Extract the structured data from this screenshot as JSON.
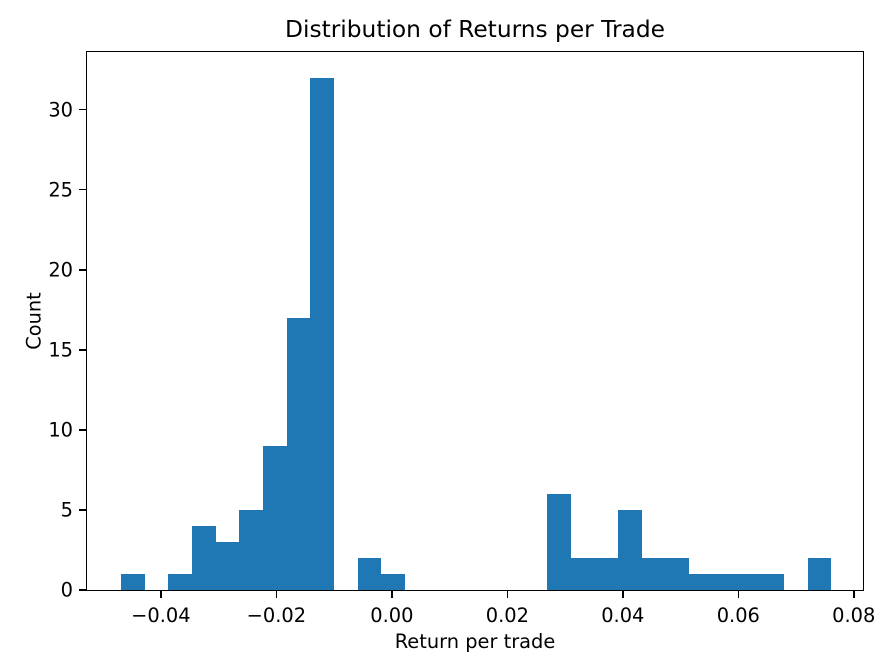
{
  "figure": {
    "background_color": "#ffffff",
    "text_color": "#000000"
  },
  "chart_data": {
    "type": "bar",
    "subtype": "histogram",
    "title": "Distribution of Returns per Trade",
    "xlabel": "Return per trade",
    "ylabel": "Count",
    "bar_color": "#1f77b4",
    "grid": false,
    "legend": "none",
    "bin_start": -0.0469,
    "bin_width": 0.0041,
    "counts": [
      1,
      0,
      1,
      4,
      3,
      5,
      9,
      17,
      32,
      0,
      2,
      1,
      0,
      0,
      0,
      0,
      0,
      0,
      6,
      2,
      2,
      5,
      2,
      2,
      1,
      1,
      1,
      1,
      0,
      2
    ],
    "xlim": [
      -0.0528,
      0.0816
    ],
    "ylim": [
      0,
      33.6
    ],
    "x_ticks": [
      {
        "value": -0.04,
        "label": "−0.04"
      },
      {
        "value": -0.02,
        "label": "−0.02"
      },
      {
        "value": 0.0,
        "label": "0.00"
      },
      {
        "value": 0.02,
        "label": "0.02"
      },
      {
        "value": 0.04,
        "label": "0.04"
      },
      {
        "value": 0.06,
        "label": "0.06"
      },
      {
        "value": 0.08,
        "label": "0.08"
      }
    ],
    "y_ticks": [
      {
        "value": 0,
        "label": "0"
      },
      {
        "value": 5,
        "label": "5"
      },
      {
        "value": 10,
        "label": "10"
      },
      {
        "value": 15,
        "label": "15"
      },
      {
        "value": 20,
        "label": "20"
      },
      {
        "value": 25,
        "label": "25"
      },
      {
        "value": 30,
        "label": "30"
      }
    ]
  }
}
